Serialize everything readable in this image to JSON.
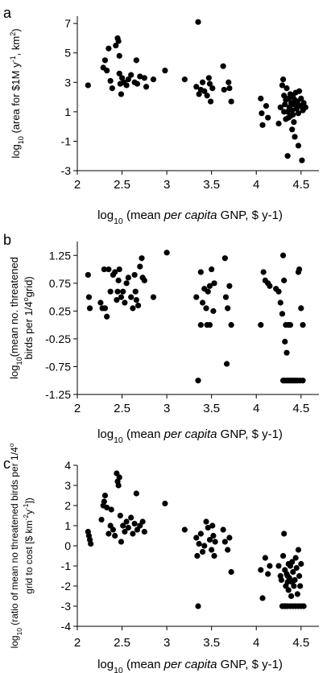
{
  "chart_data": [
    {
      "type": "scatter",
      "panel_label": "a",
      "ylabel": "log10 (area for $1M y-1, km2)",
      "ylabel_parts": [
        "log",
        "10",
        " (area for $1M y",
        "-1",
        ", km",
        "2",
        ")"
      ],
      "xlabel_parts": [
        "log",
        "10",
        " (mean ",
        "per capita",
        " GNP, $ y-1)"
      ],
      "xlim": [
        2,
        4.7
      ],
      "ylim": [
        -3,
        7.5
      ],
      "xticks": [
        "2",
        "2.5",
        "3",
        "3.5",
        "4",
        "4.5"
      ],
      "yticks": [
        "7",
        "5",
        "3",
        "1",
        "-1",
        "-3"
      ],
      "points": [
        [
          2.12,
          2.8
        ],
        [
          2.29,
          4.0
        ],
        [
          2.31,
          4.5
        ],
        [
          2.33,
          3.8
        ],
        [
          2.35,
          5.3
        ],
        [
          2.37,
          3.1
        ],
        [
          2.39,
          2.6
        ],
        [
          2.43,
          5.5
        ],
        [
          2.45,
          6.0
        ],
        [
          2.46,
          5.8
        ],
        [
          2.47,
          4.8
        ],
        [
          2.47,
          3.6
        ],
        [
          2.48,
          2.9
        ],
        [
          2.49,
          2.2
        ],
        [
          2.5,
          3.3
        ],
        [
          2.52,
          3.0
        ],
        [
          2.55,
          2.8
        ],
        [
          2.57,
          3.2
        ],
        [
          2.6,
          3.5
        ],
        [
          2.64,
          3.0
        ],
        [
          2.66,
          4.5
        ],
        [
          2.67,
          2.9
        ],
        [
          2.7,
          3.4
        ],
        [
          2.75,
          3.3
        ],
        [
          2.77,
          2.7
        ],
        [
          2.85,
          3.2
        ],
        [
          2.98,
          3.8
        ],
        [
          3.2,
          3.2
        ],
        [
          3.33,
          2.7
        ],
        [
          3.35,
          7.1
        ],
        [
          3.36,
          2.2
        ],
        [
          3.38,
          2.5
        ],
        [
          3.4,
          3.0
        ],
        [
          3.42,
          2.4
        ],
        [
          3.45,
          2.1
        ],
        [
          3.47,
          3.3
        ],
        [
          3.48,
          2.9
        ],
        [
          3.49,
          1.7
        ],
        [
          3.51,
          2.6
        ],
        [
          3.63,
          4.1
        ],
        [
          3.64,
          2.5
        ],
        [
          3.69,
          3.0
        ],
        [
          3.7,
          2.6
        ],
        [
          3.72,
          1.7
        ],
        [
          4.05,
          1.9
        ],
        [
          4.06,
          0.9
        ],
        [
          4.07,
          0.1
        ],
        [
          4.11,
          1.4
        ],
        [
          4.13,
          0.6
        ],
        [
          4.25,
          0.2
        ],
        [
          4.27,
          1.3
        ],
        [
          4.29,
          2.8
        ],
        [
          4.3,
          3.2
        ],
        [
          4.31,
          2.1
        ],
        [
          4.32,
          1.5
        ],
        [
          4.33,
          1.8
        ],
        [
          4.33,
          0.5
        ],
        [
          4.34,
          2.6
        ],
        [
          4.35,
          1.0
        ],
        [
          4.35,
          -2.0
        ],
        [
          4.36,
          1.9
        ],
        [
          4.37,
          1.3
        ],
        [
          4.38,
          2.2
        ],
        [
          4.38,
          0.7
        ],
        [
          4.39,
          1.6
        ],
        [
          4.4,
          1.1
        ],
        [
          4.4,
          -0.2
        ],
        [
          4.41,
          2.0
        ],
        [
          4.42,
          1.5
        ],
        [
          4.42,
          0.3
        ],
        [
          4.43,
          1.8
        ],
        [
          4.43,
          -0.7
        ],
        [
          4.44,
          2.3
        ],
        [
          4.45,
          1.2
        ],
        [
          4.46,
          1.7
        ],
        [
          4.47,
          0.9
        ],
        [
          4.47,
          -1.3
        ],
        [
          4.48,
          2.4
        ],
        [
          4.49,
          1.4
        ],
        [
          4.5,
          1.9
        ],
        [
          4.51,
          -2.3
        ],
        [
          4.52,
          1.1
        ],
        [
          4.53,
          1.6
        ],
        [
          4.55,
          1.3
        ],
        [
          4.31,
          1.0
        ],
        [
          4.36,
          0.6
        ],
        [
          4.41,
          0.8
        ],
        [
          4.44,
          1.5
        ]
      ]
    },
    {
      "type": "scatter",
      "panel_label": "b",
      "ylabel": "log10 (mean no. threatened birds per 1/4°grid)",
      "ylabel_parts": [
        "log",
        "10",
        "(mean no. threatened"
      ],
      "ylabel2_parts": [
        "birds per 1/4",
        "o",
        "grid)"
      ],
      "xlabel_parts": [
        "log",
        "10",
        " (mean ",
        "per capita",
        " GNP, $ y-1)"
      ],
      "xlim": [
        2,
        4.7
      ],
      "ylim": [
        -1.25,
        1.5
      ],
      "xticks": [
        "2",
        "2.5",
        "3",
        "3.5",
        "4",
        "4.5"
      ],
      "yticks": [
        "1.25",
        "0.75",
        "0.25",
        "-0.25",
        "-0.75",
        "-1.25"
      ],
      "points": [
        [
          2.12,
          0.9
        ],
        [
          2.13,
          0.5
        ],
        [
          2.14,
          0.3
        ],
        [
          2.26,
          0.4
        ],
        [
          2.28,
          0.3
        ],
        [
          2.3,
          1.0
        ],
        [
          2.31,
          0.3
        ],
        [
          2.33,
          0.15
        ],
        [
          2.35,
          1.0
        ],
        [
          2.37,
          0.6
        ],
        [
          2.4,
          0.9
        ],
        [
          2.42,
          0.95
        ],
        [
          2.44,
          0.45
        ],
        [
          2.45,
          0.6
        ],
        [
          2.46,
          0.8
        ],
        [
          2.47,
          1.0
        ],
        [
          2.49,
          0.5
        ],
        [
          2.51,
          0.6
        ],
        [
          2.53,
          0.4
        ],
        [
          2.55,
          0.75
        ],
        [
          2.57,
          0.85
        ],
        [
          2.6,
          0.5
        ],
        [
          2.62,
          0.3
        ],
        [
          2.64,
          0.9
        ],
        [
          2.65,
          0.6
        ],
        [
          2.66,
          0.45
        ],
        [
          2.68,
          0.35
        ],
        [
          2.7,
          1.05
        ],
        [
          2.72,
          1.2
        ],
        [
          2.73,
          0.85
        ],
        [
          2.75,
          0.8
        ],
        [
          2.85,
          0.5
        ],
        [
          3.0,
          1.3
        ],
        [
          3.33,
          0.5
        ],
        [
          3.35,
          -1.0
        ],
        [
          3.38,
          0.95
        ],
        [
          3.4,
          0.4
        ],
        [
          3.42,
          0.65
        ],
        [
          3.44,
          0.3
        ],
        [
          3.46,
          0.6
        ],
        [
          3.48,
          0.7
        ],
        [
          3.5,
          1.0
        ],
        [
          3.52,
          0.25
        ],
        [
          3.53,
          0.75
        ],
        [
          3.38,
          0.0
        ],
        [
          3.45,
          0.0
        ],
        [
          3.48,
          0.0
        ],
        [
          3.65,
          1.2
        ],
        [
          3.66,
          0.5
        ],
        [
          3.67,
          -0.7
        ],
        [
          3.68,
          0.3
        ],
        [
          3.7,
          0.7
        ],
        [
          3.72,
          0.0
        ],
        [
          4.05,
          0.0
        ],
        [
          4.08,
          0.95
        ],
        [
          4.1,
          0.8
        ],
        [
          4.13,
          0.75
        ],
        [
          4.15,
          0.7
        ],
        [
          4.22,
          0.65
        ],
        [
          4.25,
          0.6
        ],
        [
          4.27,
          0.4
        ],
        [
          4.29,
          0.2
        ],
        [
          4.3,
          1.25
        ],
        [
          4.31,
          0.8
        ],
        [
          4.32,
          -0.3
        ],
        [
          4.33,
          0.0
        ],
        [
          4.34,
          -0.5
        ],
        [
          4.36,
          0.0
        ],
        [
          4.38,
          0.0
        ],
        [
          4.3,
          -1.0
        ],
        [
          4.32,
          -1.0
        ],
        [
          4.34,
          -1.0
        ],
        [
          4.36,
          -1.0
        ],
        [
          4.38,
          -1.0
        ],
        [
          4.4,
          -1.0
        ],
        [
          4.42,
          -1.0
        ],
        [
          4.44,
          -1.0
        ],
        [
          4.46,
          -1.0
        ],
        [
          4.49,
          -1.0
        ],
        [
          4.52,
          -1.0
        ],
        [
          4.47,
          0.95
        ],
        [
          4.48,
          1.0
        ],
        [
          4.5,
          0.3
        ],
        [
          4.52,
          0.0
        ]
      ]
    },
    {
      "type": "scatter",
      "panel_label": "c",
      "ylabel": "log10 (ratio of mean no threatened birds per 1/4 o grid to cost [$ km-2y-1])",
      "ylabel_parts": [
        "log",
        "10",
        " (ratio of mean no threatened birds per 1/4"
      ],
      "ylabel_sup": "o",
      "ylabel2_parts": [
        "grid to cost [$ km",
        "-2",
        "y",
        "-1",
        "])"
      ],
      "xlabel_parts": [
        "log",
        "10",
        " (mean ",
        "per capita",
        " GNP, $ y-1)"
      ],
      "xlim": [
        2,
        4.7
      ],
      "ylim": [
        -4,
        4
      ],
      "xticks": [
        "2",
        "2.5",
        "3",
        "3.5",
        "4",
        "4.5"
      ],
      "yticks": [
        "4",
        "3",
        "2",
        "1",
        "0",
        "-1",
        "-2",
        "-3",
        "-4"
      ],
      "points": [
        [
          2.12,
          0.7
        ],
        [
          2.13,
          0.5
        ],
        [
          2.14,
          0.3
        ],
        [
          2.15,
          0.1
        ],
        [
          2.27,
          1.3
        ],
        [
          2.29,
          2.0
        ],
        [
          2.3,
          2.2
        ],
        [
          2.31,
          2.5
        ],
        [
          2.33,
          1.9
        ],
        [
          2.35,
          0.6
        ],
        [
          2.37,
          1.0
        ],
        [
          2.38,
          1.8
        ],
        [
          2.4,
          0.8
        ],
        [
          2.42,
          0.5
        ],
        [
          2.44,
          3.6
        ],
        [
          2.45,
          3.2
        ],
        [
          2.46,
          3.0
        ],
        [
          2.47,
          3.4
        ],
        [
          2.48,
          1.5
        ],
        [
          2.49,
          0.2
        ],
        [
          2.51,
          1.0
        ],
        [
          2.53,
          0.7
        ],
        [
          2.55,
          1.2
        ],
        [
          2.57,
          0.9
        ],
        [
          2.6,
          1.4
        ],
        [
          2.62,
          0.6
        ],
        [
          2.64,
          1.1
        ],
        [
          2.66,
          2.6
        ],
        [
          2.67,
          0.8
        ],
        [
          2.7,
          1.0
        ],
        [
          2.73,
          1.2
        ],
        [
          2.75,
          0.7
        ],
        [
          2.98,
          2.1
        ],
        [
          3.2,
          0.8
        ],
        [
          3.33,
          0.4
        ],
        [
          3.34,
          -0.5
        ],
        [
          3.35,
          -3.0
        ],
        [
          3.36,
          0.1
        ],
        [
          3.38,
          0.6
        ],
        [
          3.4,
          -0.3
        ],
        [
          3.42,
          0.0
        ],
        [
          3.44,
          1.2
        ],
        [
          3.46,
          0.9
        ],
        [
          3.48,
          0.3
        ],
        [
          3.5,
          -0.2
        ],
        [
          3.51,
          1.0
        ],
        [
          3.52,
          0.5
        ],
        [
          3.53,
          -0.5
        ],
        [
          3.54,
          0.2
        ],
        [
          3.63,
          0.8
        ],
        [
          3.65,
          0.2
        ],
        [
          3.68,
          -0.2
        ],
        [
          3.7,
          0.4
        ],
        [
          3.72,
          -1.3
        ],
        [
          4.05,
          -1.2
        ],
        [
          4.07,
          -2.6
        ],
        [
          4.1,
          -0.6
        ],
        [
          4.13,
          -1.4
        ],
        [
          4.15,
          -1.0
        ],
        [
          4.25,
          -1.0
        ],
        [
          4.27,
          -1.5
        ],
        [
          4.28,
          -1.7
        ],
        [
          4.3,
          -0.5
        ],
        [
          4.31,
          0.6
        ],
        [
          4.32,
          -1.2
        ],
        [
          4.33,
          -2.0
        ],
        [
          4.34,
          -1.4
        ],
        [
          4.35,
          -1.8
        ],
        [
          4.36,
          -2.2
        ],
        [
          4.37,
          -1.6
        ],
        [
          4.38,
          -1.0
        ],
        [
          4.39,
          -2.5
        ],
        [
          4.4,
          -0.8
        ],
        [
          4.41,
          -1.3
        ],
        [
          4.42,
          -2.0
        ],
        [
          4.43,
          -1.7
        ],
        [
          4.44,
          -0.6
        ],
        [
          4.45,
          -1.1
        ],
        [
          4.46,
          -2.4
        ],
        [
          4.47,
          -0.2
        ],
        [
          4.48,
          -1.5
        ],
        [
          4.49,
          -2.0
        ],
        [
          4.5,
          -0.9
        ],
        [
          4.29,
          -3.0
        ],
        [
          4.31,
          -3.0
        ],
        [
          4.33,
          -3.0
        ],
        [
          4.35,
          -3.0
        ],
        [
          4.38,
          -3.0
        ],
        [
          4.41,
          -3.0
        ],
        [
          4.44,
          -3.0
        ],
        [
          4.47,
          -3.0
        ],
        [
          4.5,
          -3.0
        ],
        [
          4.53,
          -3.0
        ],
        [
          4.35,
          -1.5
        ],
        [
          4.4,
          -1.8
        ],
        [
          4.36,
          -0.9
        ]
      ]
    }
  ]
}
